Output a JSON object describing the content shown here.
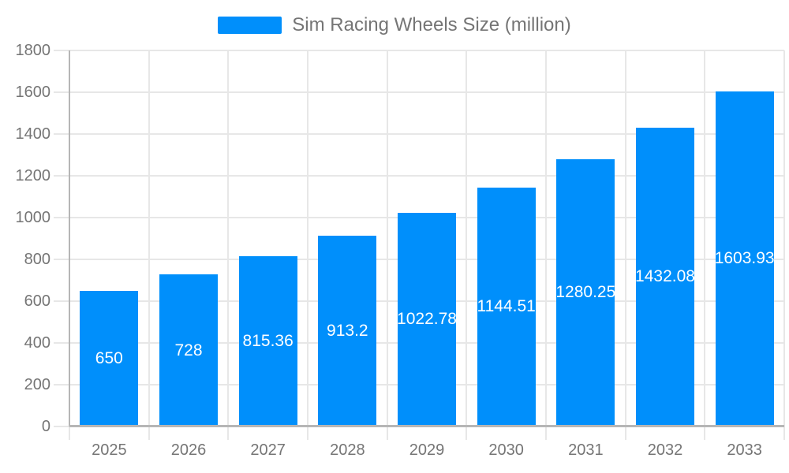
{
  "chart_data": {
    "type": "bar",
    "title": "Sim Racing Wheels Size (million)",
    "categories": [
      "2025",
      "2026",
      "2027",
      "2028",
      "2029",
      "2030",
      "2031",
      "2032",
      "2033"
    ],
    "values": [
      650,
      728,
      815.36,
      913.2,
      1022.78,
      1144.51,
      1280.25,
      1432.08,
      1603.93
    ],
    "value_labels": [
      "650",
      "728",
      "815.36",
      "913.2",
      "1022.78",
      "1144.51",
      "1280.25",
      "1432.08",
      "1603.93"
    ],
    "xlabel": "",
    "ylabel": "",
    "ylim": [
      0,
      1800
    ],
    "yticks": [
      0,
      200,
      400,
      600,
      800,
      1000,
      1200,
      1400,
      1600,
      1800
    ],
    "grid": true,
    "legend_position": "top",
    "colors": {
      "bar": "#008FFB",
      "grid_line": "#e7e7e7",
      "axis_line": "#b6b6b6",
      "axis_label_text": "#757575",
      "title_text": "#757575",
      "data_label_text": "#ffffff",
      "background": "#ffffff"
    }
  }
}
